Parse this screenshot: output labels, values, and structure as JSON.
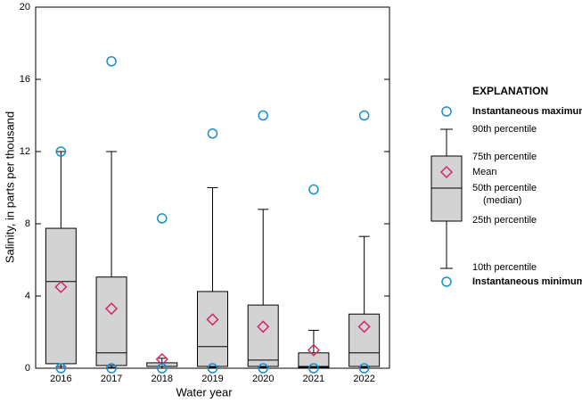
{
  "chart_data": {
    "type": "box",
    "x_label": "Water year",
    "y_label": "Salinity, in parts per thousand",
    "categories": [
      "2016",
      "2017",
      "2018",
      "2019",
      "2020",
      "2021",
      "2022"
    ],
    "p10": [
      0.1,
      0.05,
      0,
      0.05,
      0.05,
      0,
      0.05
    ],
    "p25": [
      0.25,
      0.15,
      0.1,
      0.1,
      0.1,
      0.05,
      0.1
    ],
    "median": [
      4.8,
      0.85,
      0.1,
      1.2,
      0.45,
      0.1,
      0.85
    ],
    "p75": [
      7.75,
      5.05,
      0.3,
      4.25,
      3.5,
      0.85,
      3.0
    ],
    "p90": [
      12.0,
      12.0,
      0.55,
      10.0,
      8.8,
      2.1,
      7.3
    ],
    "mean": [
      4.5,
      3.3,
      0.5,
      2.7,
      2.3,
      1.0,
      2.3
    ],
    "max": [
      12.0,
      17.0,
      8.3,
      13.0,
      14.0,
      9.9,
      14.0
    ],
    "min": [
      0,
      0,
      0,
      0,
      0,
      0,
      0
    ],
    "box_color": "#d3d3d3",
    "mean_color": "#d6246e",
    "extreme_color": "#1a8fcf",
    "ylim": [
      0,
      20
    ],
    "yticks": [
      0,
      4,
      8,
      12,
      16,
      20
    ],
    "legend": {
      "title": "EXPLANATION",
      "max": "Instantaneous maximum",
      "p90": "90th percentile",
      "p75": "75th percentile",
      "mean": "Mean",
      "median": "50th percentile",
      "median_note": "(median)",
      "p25": "25th percentile",
      "p10": "10th percentile",
      "min": "Instantaneous minimum"
    }
  }
}
